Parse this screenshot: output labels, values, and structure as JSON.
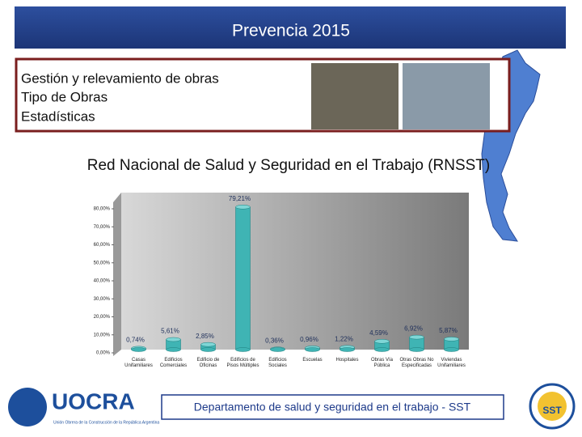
{
  "header": {
    "title": "Prevencia 2015"
  },
  "topics": [
    "Gestión y relevamiento de obras",
    "Tipo de Obras",
    "Estadísticas"
  ],
  "subtitle": "Red Nacional de Salud y Seguridad en el Trabajo (RNSST)",
  "chart_data": {
    "type": "bar",
    "categories": [
      "Casas Unifamiliares",
      "Edificios Comerciales",
      "Edificio de Oficinas",
      "Edificios de Pisos Múltiples",
      "Edificios Sociales",
      "Escuelas",
      "Hospitales",
      "Obras Vía Pública",
      "Otras Obras No Especificadas",
      "Viviendas Unifamiliares"
    ],
    "values": [
      0.74,
      5.61,
      2.85,
      79.21,
      0.36,
      0.96,
      1.22,
      4.59,
      6.92,
      5.87
    ],
    "value_labels": [
      "0,74%",
      "5,61%",
      "2,85%",
      "79,21%",
      "0,36%",
      "0,96%",
      "1,22%",
      "4,59%",
      "6,92%",
      "5,87%"
    ],
    "color": "#3fb4b4",
    "ylim": [
      0,
      80
    ],
    "yticks": [
      {
        "value": 0,
        "label": "0,00%"
      },
      {
        "value": 10,
        "label": "10,00%"
      },
      {
        "value": 20,
        "label": "20,00%"
      },
      {
        "value": 30,
        "label": "30,00%"
      },
      {
        "value": 40,
        "label": "40,00%"
      },
      {
        "value": 50,
        "label": "50,00%"
      },
      {
        "value": 60,
        "label": "60,00%"
      },
      {
        "value": 70,
        "label": "70,00%"
      },
      {
        "value": 80,
        "label": "80,00%"
      }
    ]
  },
  "logo": {
    "name": "UOCRA",
    "caption": "Unión Obrera de la Construcción de la República Argentina"
  },
  "badge": "SST",
  "footer": "Departamento de salud y seguridad en el trabajo - SST"
}
